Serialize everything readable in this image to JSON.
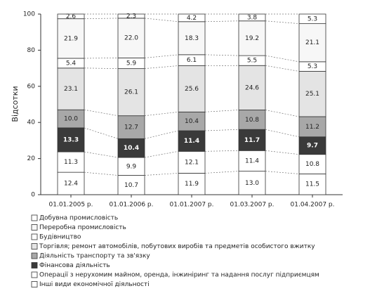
{
  "chart_data": {
    "type": "stacked-bar",
    "y_label": "Відсотки",
    "categories": [
      "01.01.2005 р.",
      "01.01.2006 р.",
      "01.01.2007 р.",
      "01.03.2007 р.",
      "01.04.2007 р."
    ],
    "ylim": [
      0,
      100
    ],
    "yticks": [
      0,
      20,
      40,
      60,
      80,
      100
    ],
    "series": [
      {
        "name": "Добувна промисловість",
        "color": "#ffffff",
        "values": [
          2.6,
          2.3,
          4.2,
          3.8,
          5.3
        ],
        "value_labels": [
          "2.6",
          "2.3",
          "4.2",
          "3.8",
          "5.3"
        ]
      },
      {
        "name": "Переробна промисловість",
        "color": "#f7f7f7",
        "values": [
          21.9,
          22.0,
          18.3,
          19.2,
          21.1
        ],
        "value_labels": [
          "21.9",
          "22.0",
          "18.3",
          "19.2",
          "21.1"
        ]
      },
      {
        "name": "Будівництво",
        "color": "#ffffff",
        "values": [
          5.4,
          5.9,
          6.1,
          5.5,
          5.3
        ],
        "value_labels": [
          "5.4",
          "5.9",
          "6.1",
          "5.5",
          "5.3"
        ]
      },
      {
        "name": "Торгівля; ремонт автомобілів, побутових виробів та предметів особистого вжитку",
        "color": "#e4e4e4",
        "values": [
          23.1,
          26.1,
          25.6,
          24.6,
          25.1
        ],
        "value_labels": [
          "23.1",
          "26.1",
          "25.6",
          "24.6",
          "25.1"
        ]
      },
      {
        "name": "Діяльність транспорту та зв'язку",
        "color": "#a8a8a8",
        "values": [
          10.0,
          12.7,
          10.4,
          10.8,
          11.2
        ],
        "value_labels": [
          "10.0",
          "12.7",
          "10.4",
          "10.8",
          "11.2"
        ]
      },
      {
        "name": "Фінансова діяльність",
        "color": "#3a3a3a",
        "values": [
          13.3,
          10.4,
          11.4,
          11.7,
          9.7
        ],
        "value_labels": [
          "13.3",
          "10.4",
          "11.4",
          "11.7",
          "9.7"
        ]
      },
      {
        "name": "Операції з нерухомим майном, оренда, інжиніринг та надання послуг підприємцям",
        "color": "#ffffff",
        "values": [
          11.3,
          9.9,
          12.1,
          11.4,
          10.8
        ],
        "value_labels": [
          "11.3",
          "9.9",
          "12.1",
          "11.4",
          "10.8"
        ]
      },
      {
        "name": "Інші види економічної діяльності",
        "color": "#ffffff",
        "values": [
          12.4,
          10.7,
          11.9,
          13.0,
          11.5
        ],
        "value_labels": [
          "12.4",
          "10.7",
          "11.9",
          "13.0",
          "11.5"
        ]
      }
    ]
  }
}
